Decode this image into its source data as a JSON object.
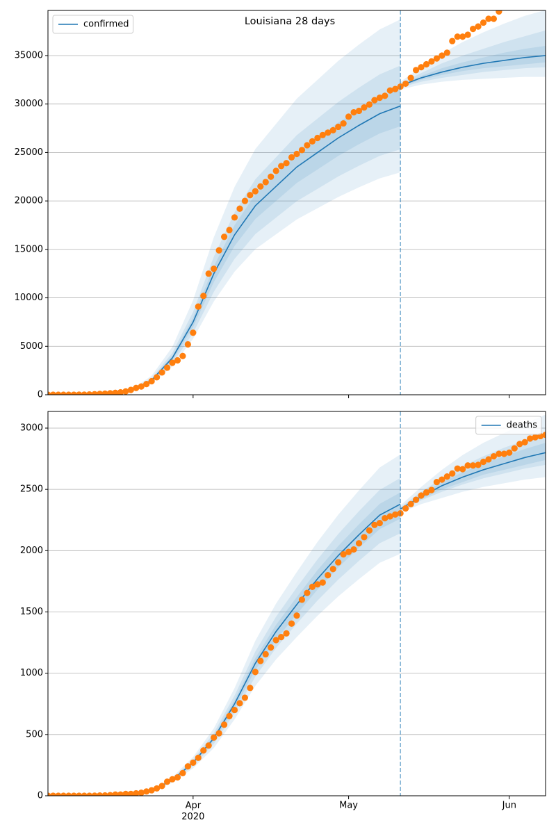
{
  "chart_data": [
    {
      "type": "line",
      "title": "Louisiana 28 days",
      "x": [
        0,
        1,
        2,
        3,
        4,
        5,
        6,
        7,
        8,
        9,
        10,
        11,
        12,
        13,
        14,
        15,
        16,
        17,
        18,
        19,
        20,
        21,
        22,
        23,
        24,
        25,
        26,
        27,
        28,
        29,
        30,
        31,
        32,
        33,
        34,
        35,
        36,
        37,
        38,
        39,
        40,
        41,
        42,
        43,
        44,
        45,
        46,
        47,
        48,
        49,
        50,
        51,
        52,
        53,
        54,
        55,
        56,
        57,
        58,
        59,
        60,
        61,
        62,
        63,
        64,
        65,
        66,
        67,
        68,
        69,
        70,
        71,
        72,
        73,
        74,
        75,
        76,
        77,
        78,
        79,
        80,
        81,
        82,
        83,
        84,
        85,
        86,
        87,
        88,
        89,
        90,
        91,
        92,
        93,
        94,
        95,
        96
      ],
      "xlim": [
        0,
        96
      ],
      "xticks": [
        28,
        58,
        89
      ],
      "show_xtick_labels": false,
      "ylim": [
        0,
        39660
      ],
      "yticks": [
        0,
        5000,
        10000,
        15000,
        20000,
        25000,
        30000,
        35000
      ],
      "grid": true,
      "legend": "upper left",
      "vline": 68,
      "series": [
        {
          "name": "confirmed",
          "color": "#1f77b4",
          "x": [
            0,
            4,
            8,
            12,
            16,
            20,
            24,
            28,
            32,
            36,
            40,
            44,
            48,
            52,
            56,
            60,
            64,
            68,
            68,
            72,
            76,
            80,
            84,
            88,
            92,
            96
          ],
          "values": [
            0,
            0,
            10,
            50,
            400,
            1500,
            3800,
            7500,
            12500,
            16500,
            19500,
            21500,
            23500,
            25000,
            26500,
            27800,
            29000,
            29800,
            31900,
            32700,
            33300,
            33800,
            34200,
            34500,
            34800,
            35000
          ],
          "bands": [
            {
              "lower": [
                0,
                0,
                8,
                39,
                308,
                1155,
                2926,
                5775,
                9625,
                12705,
                15015,
                16555,
                18095,
                19250,
                20405,
                21406,
                22330,
                22946,
                31500,
                32000,
                32300,
                32500,
                32600,
                32700,
                32800,
                32800
              ],
              "upper": [
                0,
                0,
                13,
                65,
                520,
                1950,
                4940,
                9750,
                16250,
                21450,
                25350,
                27950,
                30550,
                32500,
                34450,
                36140,
                37700,
                38740,
                32300,
                33800,
                35200,
                36400,
                37400,
                38300,
                39100,
                39700
              ]
            },
            {
              "lower": [
                0,
                0,
                9,
                43,
                340,
                1275,
                3230,
                6375,
                10625,
                14025,
                16575,
                18275,
                19975,
                21250,
                22525,
                23630,
                24650,
                25330,
                31700,
                32300,
                32700,
                33000,
                33300,
                33500,
                33700,
                33800
              ],
              "upper": [
                0,
                0,
                11,
                57,
                456,
                1710,
                4332,
                8550,
                14250,
                18810,
                22230,
                24510,
                26790,
                28500,
                30210,
                31692,
                33060,
                33972,
                32150,
                33200,
                34200,
                35000,
                35700,
                36400,
                37000,
                37600
              ]
            },
            {
              "lower": [
                0,
                0,
                9,
                47,
                372,
                1395,
                3534,
                6975,
                11625,
                15345,
                18135,
                19995,
                21855,
                23250,
                24645,
                25854,
                26970,
                27714,
                31800,
                32500,
                33000,
                33400,
                33700,
                33900,
                34100,
                34300
              ],
              "upper": [
                0,
                0,
                11,
                53,
                424,
                1590,
                4028,
                7950,
                13250,
                17490,
                20670,
                22790,
                24910,
                26500,
                28090,
                29468,
                30740,
                31588,
                32000,
                32900,
                33700,
                34300,
                34800,
                35300,
                35700,
                36000
              ]
            }
          ]
        },
        {
          "color": "#ff7f0e",
          "marker": "o",
          "values": [
            0,
            0,
            0,
            0,
            0,
            5,
            10,
            15,
            30,
            60,
            90,
            120,
            150,
            200,
            250,
            350,
            500,
            700,
            850,
            1100,
            1400,
            1800,
            2300,
            2800,
            3300,
            3550,
            4000,
            5200,
            6400,
            9100,
            10200,
            12500,
            13000,
            14900,
            16300,
            17000,
            18300,
            19200,
            20000,
            20600,
            21000,
            21500,
            21950,
            22500,
            23100,
            23600,
            23900,
            24500,
            24850,
            25250,
            25750,
            26150,
            26500,
            26800,
            27050,
            27300,
            27650,
            28000,
            28700,
            29150,
            29300,
            29650,
            29950,
            30400,
            30650,
            30850,
            31400,
            31550,
            31800,
            32100,
            32700,
            33500,
            33800,
            34100,
            34400,
            34700,
            35000,
            35300,
            36500,
            36950,
            36950,
            37150,
            37750,
            38000,
            38400,
            38800,
            38800,
            39550,
            null,
            null,
            null,
            null,
            null,
            null,
            null,
            null,
            null
          ]
        }
      ]
    },
    {
      "type": "line",
      "x": [
        0,
        1,
        2,
        3,
        4,
        5,
        6,
        7,
        8,
        9,
        10,
        11,
        12,
        13,
        14,
        15,
        16,
        17,
        18,
        19,
        20,
        21,
        22,
        23,
        24,
        25,
        26,
        27,
        28,
        29,
        30,
        31,
        32,
        33,
        34,
        35,
        36,
        37,
        38,
        39,
        40,
        41,
        42,
        43,
        44,
        45,
        46,
        47,
        48,
        49,
        50,
        51,
        52,
        53,
        54,
        55,
        56,
        57,
        58,
        59,
        60,
        61,
        62,
        63,
        64,
        65,
        66,
        67,
        68,
        69,
        70,
        71,
        72,
        73,
        74,
        75,
        76,
        77,
        78,
        79,
        80,
        81,
        82,
        83,
        84,
        85,
        86,
        87,
        88,
        89,
        90,
        91,
        92,
        93,
        94,
        95,
        96
      ],
      "xlim": [
        0,
        96
      ],
      "xticks": [
        {
          "value": 28,
          "label": "Apr\n2020"
        },
        {
          "value": 58,
          "label": "May"
        },
        {
          "value": 89,
          "label": "Jun"
        }
      ],
      "ylim": [
        0,
        3136
      ],
      "yticks": [
        0,
        500,
        1000,
        1500,
        2000,
        2500,
        3000
      ],
      "grid": true,
      "legend": "upper right",
      "vline": 68,
      "series": [
        {
          "name": "deaths",
          "color": "#1f77b4",
          "x": [
            0,
            4,
            8,
            12,
            16,
            20,
            24,
            28,
            32,
            36,
            40,
            44,
            48,
            52,
            56,
            60,
            64,
            68,
            68,
            72,
            76,
            80,
            84,
            88,
            92,
            96
          ],
          "values": [
            0,
            0,
            1,
            4,
            12,
            40,
            130,
            270,
            470,
            750,
            1080,
            1340,
            1560,
            1770,
            1960,
            2130,
            2290,
            2380,
            2340,
            2440,
            2530,
            2600,
            2660,
            2710,
            2760,
            2800
          ],
          "bands": [
            {
              "lower": [
                0,
                0,
                1,
                3,
                10,
                33,
                108,
                224,
                390,
                623,
                896,
                1112,
                1295,
                1469,
                1627,
                1768,
                1901,
                1975,
                2310,
                2380,
                2430,
                2480,
                2520,
                2550,
                2580,
                2600
              ],
              "upper": [
                0,
                0,
                1,
                5,
                14,
                47,
                152,
                316,
                550,
                878,
                1264,
                1568,
                1825,
                2071,
                2293,
                2492,
                2679,
                2785,
                2370,
                2520,
                2660,
                2780,
                2880,
                2960,
                3040,
                3110
              ]
            },
            {
              "lower": [
                0,
                0,
                1,
                4,
                11,
                36,
                117,
                243,
                423,
                675,
                972,
                1206,
                1404,
                1593,
                1764,
                1917,
                2061,
                2142,
                2325,
                2410,
                2480,
                2540,
                2590,
                2630,
                2670,
                2700
              ],
              "upper": [
                0,
                0,
                1,
                4,
                13,
                44,
                142,
                294,
                512,
                818,
                1177,
                1461,
                1700,
                1929,
                2136,
                2322,
                2496,
                2594,
                2355,
                2480,
                2590,
                2690,
                2770,
                2840,
                2900,
                2960
              ]
            },
            {
              "lower": [
                0,
                0,
                1,
                4,
                11,
                38,
                124,
                257,
                447,
                713,
                1026,
                1273,
                1482,
                1682,
                1862,
                2024,
                2176,
                2261,
                2332,
                2420,
                2500,
                2560,
                2620,
                2660,
                2700,
                2740
              ],
              "upper": [
                0,
                0,
                1,
                4,
                12,
                42,
                135,
                281,
                489,
                780,
                1123,
                1394,
                1622,
                1841,
                2038,
                2215,
                2382,
                2475,
                2348,
                2460,
                2560,
                2640,
                2710,
                2770,
                2830,
                2880
              ]
            }
          ]
        },
        {
          "color": "#ff7f0e",
          "marker": "o",
          "values": [
            0,
            0,
            0,
            0,
            0,
            0,
            0,
            0,
            0,
            1,
            2,
            3,
            5,
            10,
            10,
            15,
            15,
            20,
            25,
            35,
            45,
            60,
            80,
            115,
            135,
            150,
            185,
            240,
            270,
            310,
            370,
            410,
            475,
            510,
            580,
            650,
            700,
            755,
            800,
            880,
            1010,
            1100,
            1155,
            1210,
            1270,
            1295,
            1325,
            1405,
            1470,
            1600,
            1655,
            1705,
            1725,
            1740,
            1800,
            1850,
            1905,
            1970,
            1990,
            2010,
            2060,
            2110,
            2165,
            2210,
            2225,
            2265,
            2280,
            2295,
            2305,
            2345,
            2380,
            2415,
            2450,
            2475,
            2495,
            2560,
            2580,
            2605,
            2630,
            2670,
            2665,
            2695,
            2695,
            2700,
            2725,
            2745,
            2770,
            2790,
            2790,
            2800,
            2835,
            2870,
            2885,
            2915,
            2925,
            2935,
            2945
          ]
        }
      ]
    }
  ]
}
